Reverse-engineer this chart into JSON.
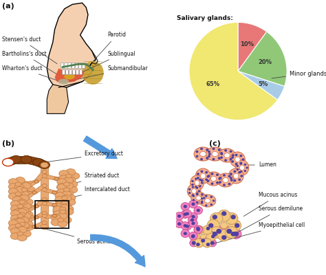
{
  "panel_a_label": "(a)",
  "panel_b_label": "(b)",
  "panel_c_label": "(c)",
  "pie_title": "Salivary glands:",
  "pie_values": [
    10,
    20,
    5,
    65
  ],
  "pie_pct_labels": [
    "10%",
    "20%",
    "5%",
    "65%"
  ],
  "pie_colors": [
    "#e87878",
    "#90c878",
    "#a8cce8",
    "#f0e870"
  ],
  "minor_glands_label": "Minor glands",
  "bg_color": "#ffffff",
  "text_color": "#111111",
  "fs": 5.5,
  "fs_panel": 8,
  "lc": "#444444",
  "head_skin": "#f5d0b0",
  "head_skin_dark": "#e8b890",
  "tongue_color": "#e05030",
  "parotid_color": "#c8a030",
  "sublingual_color": "#d4aa20",
  "submandib_color": "#b0b090",
  "neck_fill": "#f0c8a0",
  "duct_stensen_color": "#508050",
  "exc_duct_color": "#8B4513",
  "exc_duct_edge": "#5a2a00",
  "branch_fill": "#e8a870",
  "branch_edge": "#c07840",
  "lumen_tube_fill": "#f5b090",
  "lumen_tube_edge": "#d07050",
  "lumen_inner": "#ffffff",
  "nucleus_color": "#5040a0",
  "mucous_fill": "#f5c880",
  "mucous_edge": "#c09050",
  "serous_fill": "#f080c0",
  "serous_edge": "#c04080",
  "blue_arrow": "#5599dd"
}
